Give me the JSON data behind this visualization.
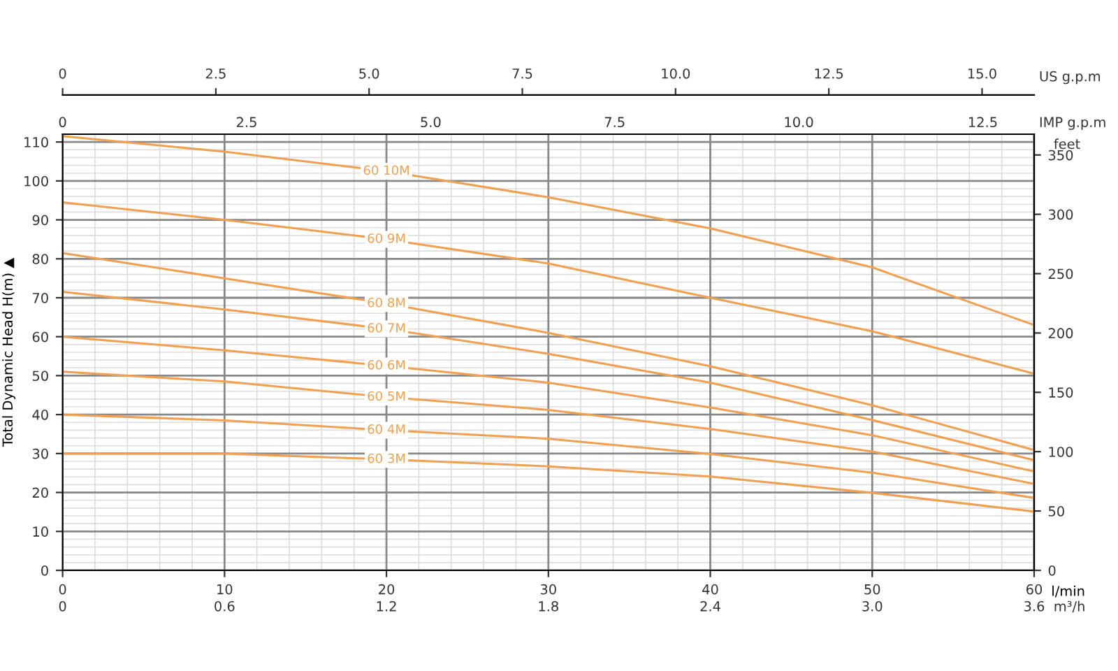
{
  "chart_data": {
    "type": "line",
    "xlabel": "l/min",
    "ylabel": "Total Dynamic Head H(m) ▲",
    "y2label": "feet",
    "x2label": "US g.p.m",
    "x": [
      0,
      10,
      20,
      30,
      40,
      50,
      60
    ],
    "series": [
      {
        "name": "60 10M",
        "color": "#f0a050",
        "values": [
          111.5,
          107.5,
          102.5,
          95.8,
          87.8,
          77.8,
          63
        ]
      },
      {
        "name": "60 9M",
        "color": "#f0a050",
        "values": [
          94.5,
          90,
          85,
          78.8,
          70,
          61.4,
          50.5
        ]
      },
      {
        "name": "60 8M",
        "color": "#f0a050",
        "values": [
          81.5,
          75,
          68.5,
          61,
          52.4,
          42.4,
          30.9
        ]
      },
      {
        "name": "60 7M",
        "color": "#f0a050",
        "values": [
          71.5,
          67,
          62,
          55.6,
          48.2,
          38.6,
          28.3
        ]
      },
      {
        "name": "60 6M",
        "color": "#f0a050",
        "values": [
          60,
          56.5,
          52.5,
          48.2,
          41.8,
          34.7,
          25.4
        ]
      },
      {
        "name": "60 5M",
        "color": "#f0a050",
        "values": [
          51,
          48.5,
          44.5,
          41.2,
          36.3,
          30.5,
          22.2
        ]
      },
      {
        "name": "60 4M",
        "color": "#f0a050",
        "values": [
          40,
          38.5,
          36,
          33.8,
          29.9,
          25.1,
          18.6
        ]
      },
      {
        "name": "60 3M",
        "color": "#f0a050",
        "values": [
          30,
          30,
          28.5,
          26.7,
          24.1,
          19.9,
          15.1
        ]
      }
    ],
    "xlim": [
      0,
      60
    ],
    "xticks": [
      0,
      10,
      20,
      30,
      40,
      50,
      60
    ],
    "ylim": [
      0,
      112
    ],
    "yticks": [
      0,
      10,
      20,
      30,
      40,
      50,
      60,
      70,
      80,
      90,
      100,
      110
    ],
    "y2lim": [
      0,
      367.5
    ],
    "y2ticks": [
      0,
      50,
      100,
      150,
      200,
      250,
      300,
      350
    ],
    "x2lim": [
      0,
      15.85
    ],
    "x2ticks": [
      0,
      2.5,
      {
        "value": 5,
        "label": "5.0"
      },
      7.5,
      {
        "value": 10,
        "label": "10.0"
      },
      12.5,
      {
        "value": 15,
        "label": "15.0"
      }
    ],
    "annotations": [
      "0",
      "2.5",
      "5.0",
      "7.5",
      "10.0",
      "12.5",
      "IMP g.p.m",
      "0",
      "0.6",
      "1.2",
      "1.8",
      "2.4",
      "3.0",
      "3.6",
      "m³/h"
    ],
    "grid": true,
    "legend": false,
    "marker": "none",
    "line_style": "solid"
  }
}
